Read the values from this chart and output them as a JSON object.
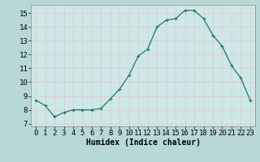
{
  "x": [
    0,
    1,
    2,
    3,
    4,
    5,
    6,
    7,
    8,
    9,
    10,
    11,
    12,
    13,
    14,
    15,
    16,
    17,
    18,
    19,
    20,
    21,
    22,
    23
  ],
  "y": [
    8.7,
    8.3,
    7.5,
    7.8,
    8.0,
    8.0,
    8.0,
    8.1,
    8.8,
    9.5,
    10.5,
    11.9,
    12.4,
    14.0,
    14.5,
    14.6,
    15.2,
    15.2,
    14.6,
    13.4,
    12.6,
    11.2,
    10.3,
    8.7
  ],
  "line_color": "#1a7a6e",
  "marker": "+",
  "marker_size": 3,
  "marker_linewidth": 0.8,
  "xlabel": "Humidex (Indice chaleur)",
  "xlabel_fontsize": 7,
  "yticks": [
    7,
    8,
    9,
    10,
    11,
    12,
    13,
    14,
    15
  ],
  "xlim": [
    -0.5,
    23.5
  ],
  "ylim": [
    6.8,
    15.6
  ],
  "bg_color": "#cde8e8",
  "fig_bg_color": "#b8d8d8",
  "grid_color": "#e8c8c8",
  "tick_fontsize": 6.5,
  "linewidth": 0.9
}
